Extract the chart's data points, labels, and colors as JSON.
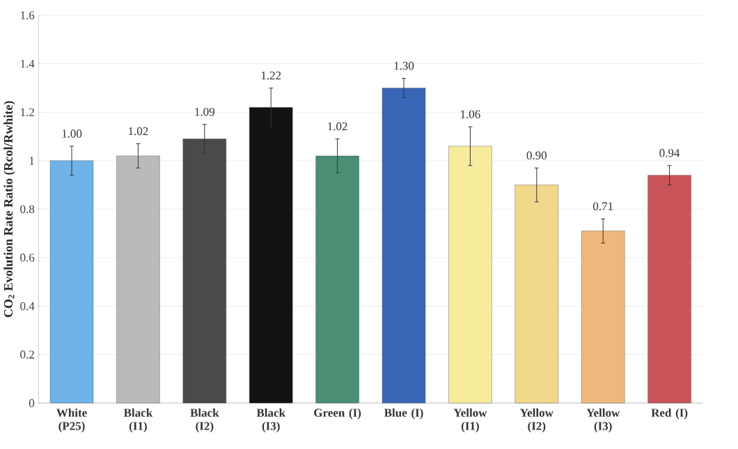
{
  "chart_data": {
    "type": "bar",
    "ylabel": "CO$_{2}$ Evolution Rate Ratio (Rcol/Rwhite)",
    "categories": [
      "White (P25)",
      "Black (I1)",
      "Black (I2)",
      "Black (I3)",
      "Green (I)",
      "Blue (I)",
      "Yellow (I1)",
      "Yellow (I2)",
      "Yellow (I3)",
      "Red (I)"
    ],
    "values": [
      1.0,
      1.02,
      1.09,
      1.22,
      1.02,
      1.3,
      1.06,
      0.9,
      0.71,
      0.94
    ],
    "errors": [
      0.06,
      0.05,
      0.06,
      0.08,
      0.07,
      0.04,
      0.08,
      0.07,
      0.05,
      0.04
    ],
    "value_labels": [
      "1.00",
      "1.02",
      "1.09",
      "1.22",
      "1.02",
      "1.30",
      "1.06",
      "0.90",
      "0.71",
      "0.94"
    ],
    "colors": [
      "#6fb3e8",
      "#bababa",
      "#4a4a4a",
      "#121212",
      "#4a8f74",
      "#3a66b8",
      "#f7ec9c",
      "#f2d88a",
      "#eeb87c",
      "#c9555a"
    ],
    "ylim": [
      0,
      1.6
    ],
    "yticks": [
      0,
      0.2,
      0.4,
      0.6,
      0.8,
      1,
      1.2,
      1.4,
      1.6
    ],
    "grid": "y"
  }
}
